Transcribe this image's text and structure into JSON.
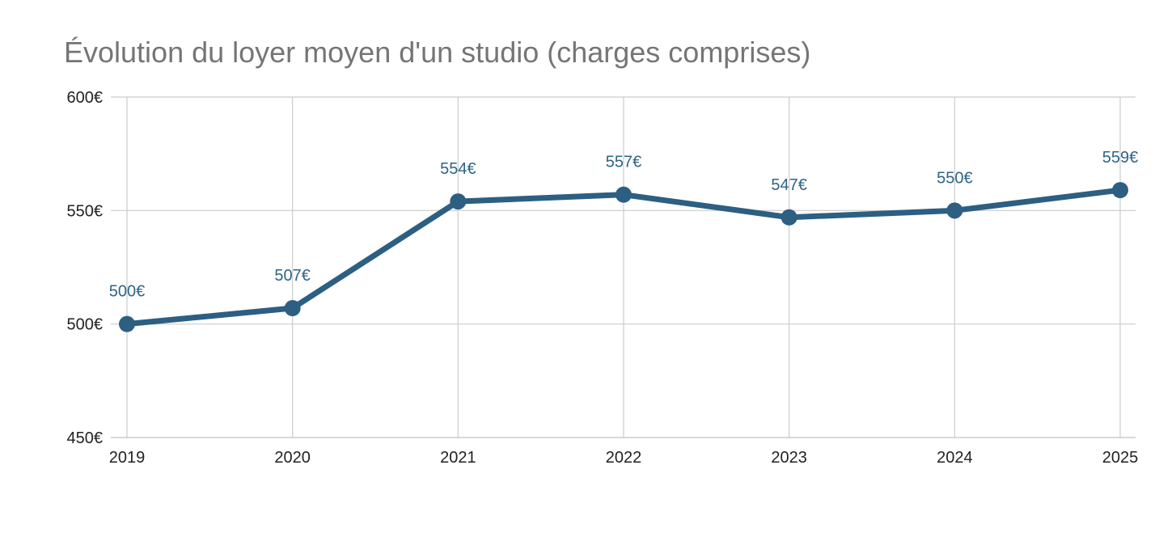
{
  "chart_data": {
    "type": "line",
    "title": "Évolution du loyer moyen d'un studio (charges comprises)",
    "xlabel": "",
    "ylabel": "",
    "categories": [
      "2019",
      "2020",
      "2021",
      "2022",
      "2023",
      "2024",
      "2025"
    ],
    "series": [
      {
        "values": [
          500,
          507,
          554,
          557,
          547,
          550,
          559
        ],
        "data_labels": [
          "500€",
          "507€",
          "554€",
          "557€",
          "547€",
          "550€",
          "559€"
        ],
        "color": "#2c5f82"
      }
    ],
    "ylim": [
      450,
      600
    ],
    "y_ticks": [
      450,
      500,
      550,
      600
    ],
    "y_tick_labels": [
      "450€",
      "500€",
      "550€",
      "600€"
    ],
    "grid": true,
    "legend": "none",
    "colors": {
      "line": "#2c5f82",
      "data_label": "#2f6485",
      "grid": "#cccccc",
      "title": "#757575",
      "tick_label": "#222222"
    }
  }
}
